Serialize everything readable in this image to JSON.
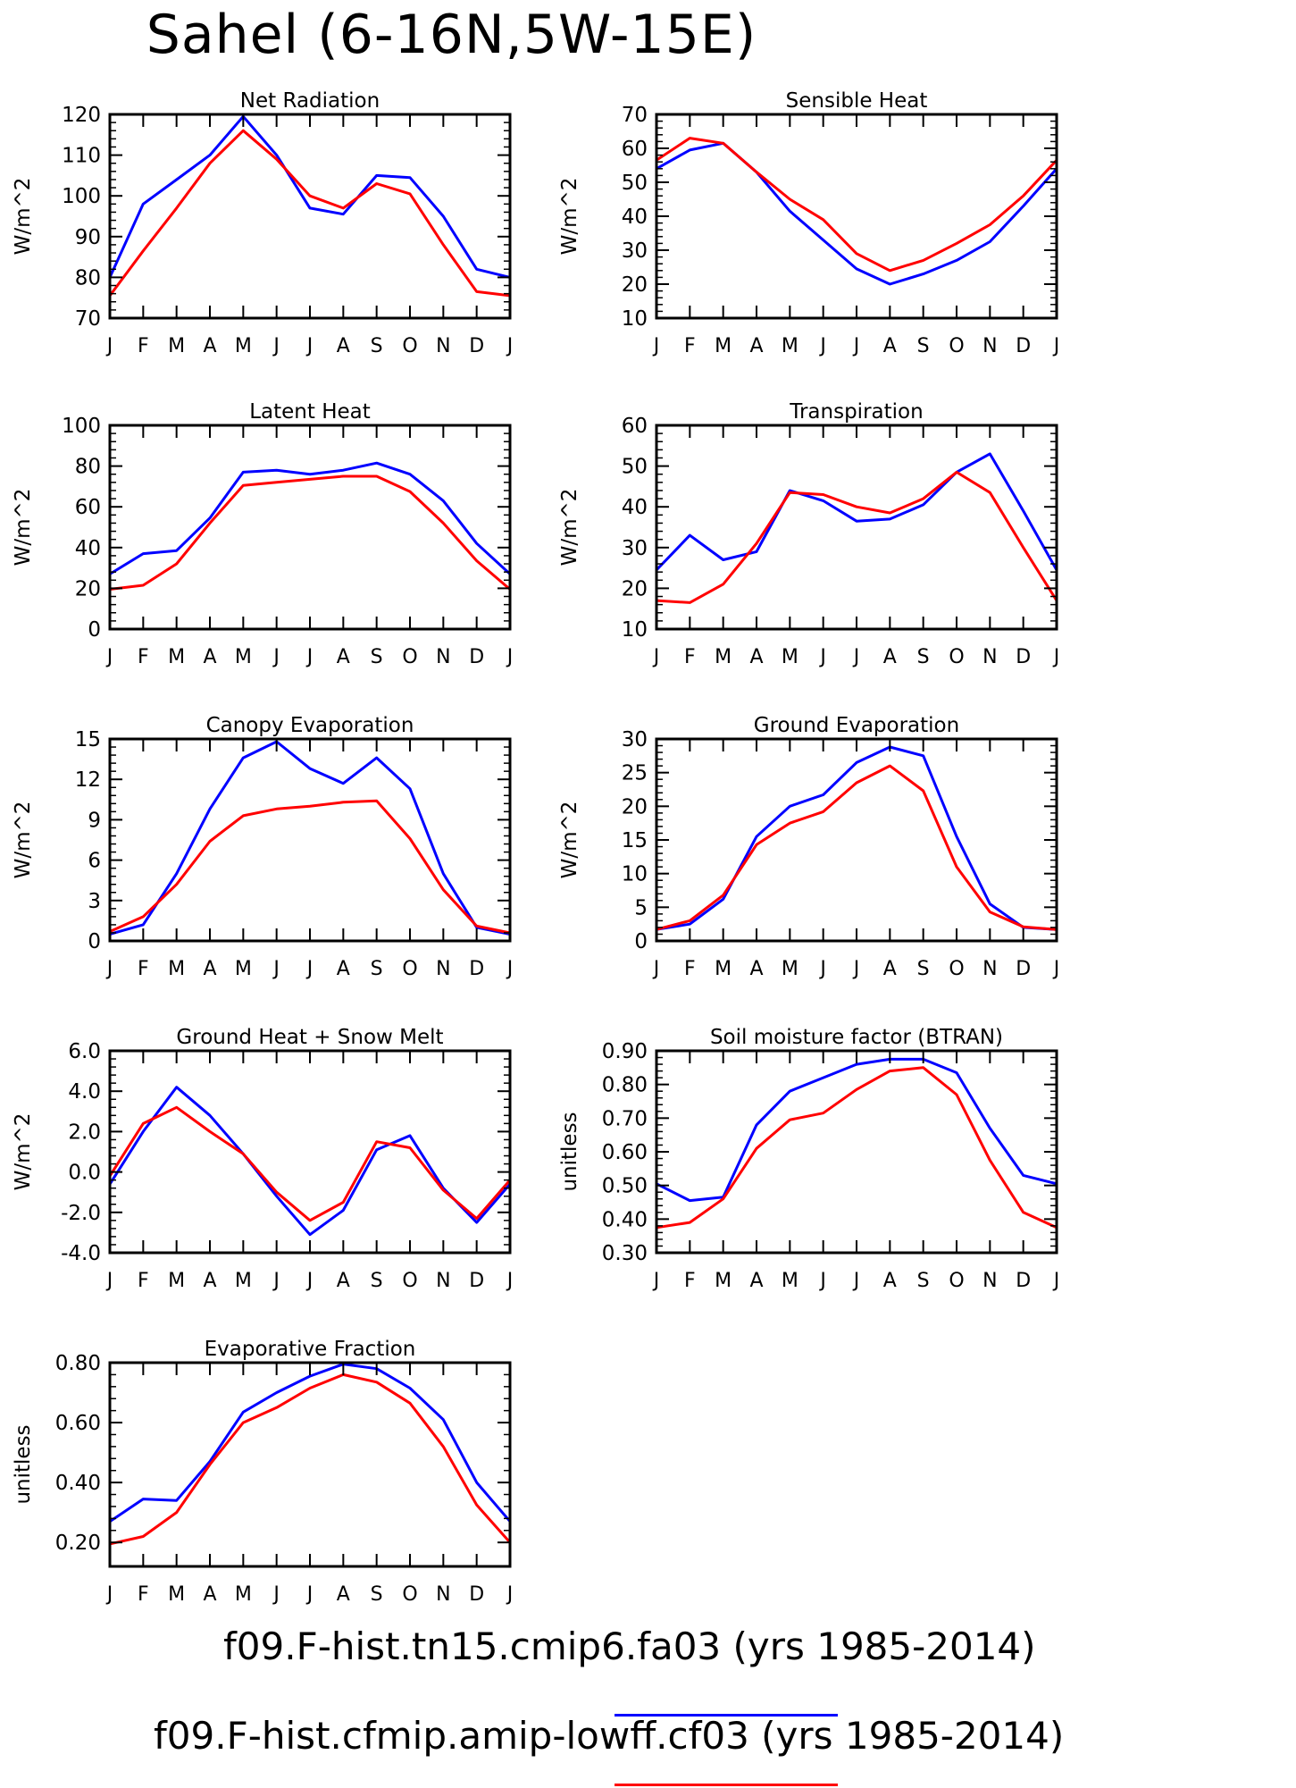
{
  "title": "Sahel (6-16N,5W-15E)",
  "legend": [
    {
      "label": "f09.F-hist.tn15.cmip6.fa03 (yrs 1985-2014)",
      "color": "#0000ff"
    },
    {
      "label": "f09.F-hist.cfmip.amip-lowff.cf03 (yrs 1985-2014)",
      "color": "#ff0000"
    }
  ],
  "colors": {
    "series1": "#0000ff",
    "series2": "#ff0000"
  },
  "chart_data": [
    {
      "type": "line",
      "title": "Net Radiation",
      "ylabel": "W/m^2",
      "categories": [
        "J",
        "F",
        "M",
        "A",
        "M",
        "J",
        "J",
        "A",
        "S",
        "O",
        "N",
        "D",
        "J"
      ],
      "ylim": [
        70,
        120
      ],
      "yticks": [
        "70",
        "80",
        "90",
        "100",
        "110",
        "120"
      ],
      "series": [
        {
          "values": [
            80,
            98,
            104,
            110,
            119.5,
            110,
            97,
            95.5,
            105,
            104.5,
            95,
            82,
            80
          ]
        },
        {
          "values": [
            75.5,
            86.5,
            97,
            108,
            116,
            109,
            100,
            97,
            103,
            100.5,
            88,
            76.5,
            75.5
          ]
        }
      ]
    },
    {
      "type": "line",
      "title": "Sensible Heat",
      "ylabel": "W/m^2",
      "categories": [
        "J",
        "F",
        "M",
        "A",
        "M",
        "J",
        "J",
        "A",
        "S",
        "O",
        "N",
        "D",
        "J"
      ],
      "ylim": [
        10,
        70
      ],
      "yticks": [
        "10",
        "20",
        "30",
        "40",
        "50",
        "60",
        "70"
      ],
      "series": [
        {
          "values": [
            54,
            59.5,
            61.5,
            53,
            41.5,
            33,
            24.5,
            20,
            23,
            27,
            32.5,
            43,
            54
          ]
        },
        {
          "values": [
            56.5,
            63,
            61.5,
            53,
            45,
            39,
            29,
            24,
            27,
            32,
            37.5,
            46,
            56.5
          ]
        }
      ]
    },
    {
      "type": "line",
      "title": "Latent Heat",
      "ylabel": "W/m^2",
      "categories": [
        "J",
        "F",
        "M",
        "A",
        "M",
        "J",
        "J",
        "A",
        "S",
        "O",
        "N",
        "D",
        "J"
      ],
      "ylim": [
        0,
        100
      ],
      "yticks": [
        "0",
        "20",
        "40",
        "60",
        "80",
        "100"
      ],
      "series": [
        {
          "values": [
            27,
            37,
            38.5,
            54.5,
            77,
            78,
            76,
            78,
            81.5,
            76,
            63,
            42,
            27
          ]
        },
        {
          "values": [
            19.5,
            21.5,
            32,
            52,
            70.5,
            72,
            73.5,
            75,
            75,
            67.5,
            52,
            33.5,
            19.5
          ]
        }
      ]
    },
    {
      "type": "line",
      "title": "Transpiration",
      "ylabel": "W/m^2",
      "categories": [
        "J",
        "F",
        "M",
        "A",
        "M",
        "J",
        "J",
        "A",
        "S",
        "O",
        "N",
        "D",
        "J"
      ],
      "ylim": [
        10,
        60
      ],
      "yticks": [
        "10",
        "20",
        "30",
        "40",
        "50",
        "60"
      ],
      "series": [
        {
          "values": [
            24.5,
            33,
            27,
            29,
            44,
            41.5,
            36.5,
            37,
            40.5,
            48.5,
            53,
            39,
            24.5
          ]
        },
        {
          "values": [
            17,
            16.5,
            21,
            31,
            43.5,
            43,
            40,
            38.5,
            42,
            48.5,
            43.5,
            30,
            17
          ]
        }
      ]
    },
    {
      "type": "line",
      "title": "Canopy Evaporation",
      "ylabel": "W/m^2",
      "categories": [
        "J",
        "F",
        "M",
        "A",
        "M",
        "J",
        "J",
        "A",
        "S",
        "O",
        "N",
        "D",
        "J"
      ],
      "ylim": [
        0,
        15
      ],
      "yticks": [
        "0",
        "3",
        "6",
        "9",
        "12",
        "15"
      ],
      "series": [
        {
          "values": [
            0.5,
            1.2,
            5.0,
            9.8,
            13.6,
            14.8,
            12.8,
            11.7,
            13.6,
            11.3,
            5.0,
            1.0,
            0.5
          ]
        },
        {
          "values": [
            0.7,
            1.8,
            4.2,
            7.4,
            9.3,
            9.8,
            10.0,
            10.3,
            10.4,
            7.6,
            3.8,
            1.1,
            0.6
          ]
        }
      ]
    },
    {
      "type": "line",
      "title": "Ground Evaporation",
      "ylabel": "W/m^2",
      "categories": [
        "J",
        "F",
        "M",
        "A",
        "M",
        "J",
        "J",
        "A",
        "S",
        "O",
        "N",
        "D",
        "J"
      ],
      "ylim": [
        0,
        30
      ],
      "yticks": [
        "0",
        "5",
        "10",
        "15",
        "20",
        "25",
        "30"
      ],
      "series": [
        {
          "values": [
            1.7,
            2.5,
            6.2,
            15.5,
            20,
            21.7,
            26.5,
            28.8,
            27.5,
            15.5,
            5.5,
            2.0,
            1.7
          ]
        },
        {
          "values": [
            1.7,
            3.0,
            6.8,
            14.3,
            17.5,
            19.2,
            23.5,
            26.0,
            22.3,
            11.0,
            4.3,
            2.1,
            1.7
          ]
        }
      ]
    },
    {
      "type": "line",
      "title": "Ground Heat + Snow Melt",
      "ylabel": "W/m^2",
      "categories": [
        "J",
        "F",
        "M",
        "A",
        "M",
        "J",
        "J",
        "A",
        "S",
        "O",
        "N",
        "D",
        "J"
      ],
      "ylim": [
        -4,
        6
      ],
      "yticks": [
        "-4.0",
        "-2.0",
        "0.0",
        "2.0",
        "4.0",
        "6.0"
      ],
      "series": [
        {
          "values": [
            -0.6,
            2.0,
            4.2,
            2.8,
            0.9,
            -1.2,
            -3.1,
            -1.9,
            1.1,
            1.8,
            -0.8,
            -2.5,
            -0.6
          ]
        },
        {
          "values": [
            -0.2,
            2.4,
            3.2,
            2.0,
            0.9,
            -1.0,
            -2.4,
            -1.5,
            1.5,
            1.2,
            -0.9,
            -2.3,
            -0.4
          ]
        }
      ]
    },
    {
      "type": "line",
      "title": "Soil moisture factor (BTRAN)",
      "ylabel": "unitless",
      "categories": [
        "J",
        "F",
        "M",
        "A",
        "M",
        "J",
        "J",
        "A",
        "S",
        "O",
        "N",
        "D",
        "J"
      ],
      "ylim": [
        0.3,
        0.9
      ],
      "yticks": [
        "0.30",
        "0.40",
        "0.50",
        "0.60",
        "0.70",
        "0.80",
        "0.90"
      ],
      "series": [
        {
          "values": [
            0.505,
            0.455,
            0.465,
            0.68,
            0.78,
            0.82,
            0.86,
            0.875,
            0.875,
            0.835,
            0.67,
            0.53,
            0.505
          ]
        },
        {
          "values": [
            0.375,
            0.39,
            0.46,
            0.61,
            0.695,
            0.715,
            0.785,
            0.84,
            0.85,
            0.77,
            0.575,
            0.42,
            0.375
          ]
        }
      ]
    },
    {
      "type": "line",
      "title": "Evaporative Fraction",
      "ylabel": "unitless",
      "categories": [
        "J",
        "F",
        "M",
        "A",
        "M",
        "J",
        "J",
        "A",
        "S",
        "O",
        "N",
        "D",
        "J"
      ],
      "ylim": [
        0.12,
        0.8
      ],
      "yticks": [
        "0.20",
        "0.40",
        "0.60",
        "0.80"
      ],
      "series": [
        {
          "values": [
            0.27,
            0.345,
            0.34,
            0.47,
            0.635,
            0.7,
            0.755,
            0.795,
            0.78,
            0.715,
            0.61,
            0.4,
            0.27
          ]
        },
        {
          "values": [
            0.195,
            0.22,
            0.3,
            0.46,
            0.6,
            0.65,
            0.715,
            0.76,
            0.735,
            0.665,
            0.52,
            0.325,
            0.2
          ]
        }
      ]
    }
  ]
}
